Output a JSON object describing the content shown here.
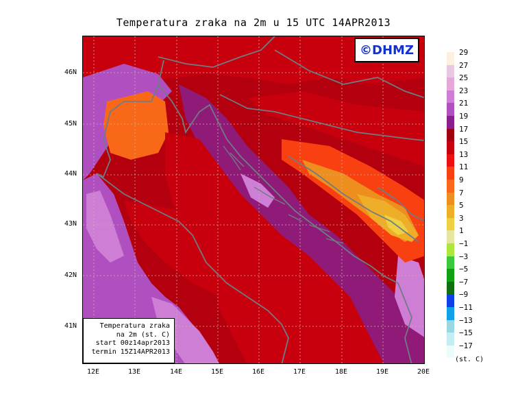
{
  "title": "Temperatura zraka na 2m u 15 UTC 14APR2013",
  "logo": "©DHMZ",
  "info_box": {
    "line1": "Temperatura zraka",
    "line2": "na 2m (st. C)",
    "line3": "start 00z14apr2013",
    "line4": "termin 15Z14APR2013"
  },
  "lat_labels": [
    "46N",
    "45N",
    "44N",
    "43N",
    "42N",
    "41N"
  ],
  "lon_labels": [
    "12E",
    "13E",
    "14E",
    "15E",
    "16E",
    "17E",
    "18E",
    "19E",
    "20E"
  ],
  "colorbar": {
    "unit": "(st. C)",
    "labels": [
      "29",
      "27",
      "25",
      "23",
      "21",
      "19",
      "17",
      "15",
      "13",
      "11",
      "9",
      "7",
      "5",
      "3",
      "1",
      "−1",
      "−3",
      "−5",
      "−7",
      "−9",
      "−11",
      "−13",
      "−15",
      "−17"
    ],
    "colors": [
      "#fdf0e0",
      "#e8c8e0",
      "#e6a8d8",
      "#cf7ed6",
      "#b050c0",
      "#8a1e8a",
      "#a00010",
      "#c8000e",
      "#ee1010",
      "#f84010",
      "#f86818",
      "#ee8e1e",
      "#eeae28",
      "#eed040",
      "#e6e6a0",
      "#ace83c",
      "#3cc83c",
      "#10a010",
      "#107010",
      "#1040e8",
      "#10a0e8",
      "#98d8e0",
      "#c4eef4",
      "#eafcfc"
    ]
  }
}
